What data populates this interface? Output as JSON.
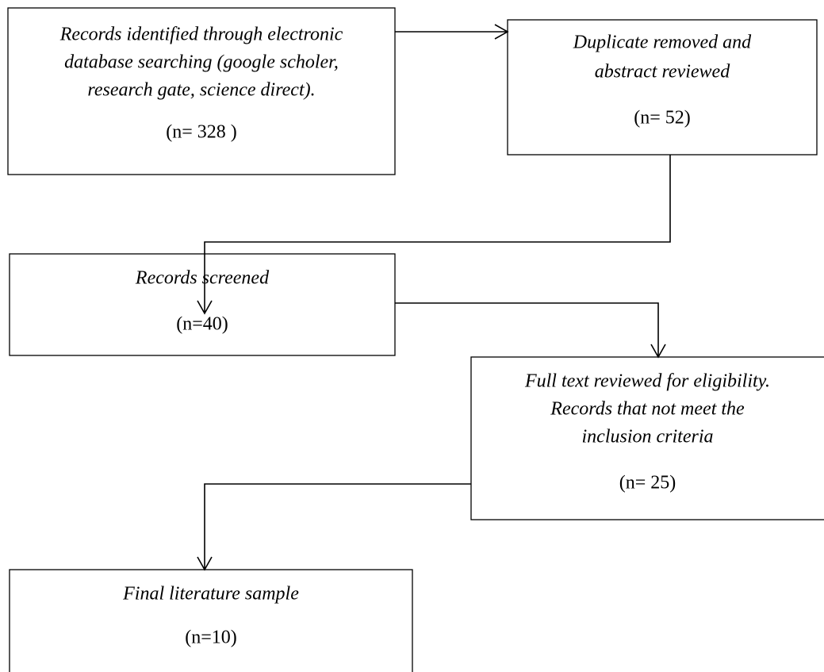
{
  "nodes": [
    {
      "label_lines": [
        "Records identified through electronic",
        "database searching (google scholer,",
        "research gate, science direct)."
      ],
      "count": "(n= 328 )"
    },
    {
      "label_lines": [
        "Duplicate removed and",
        "abstract reviewed"
      ],
      "count": "(n= 52)"
    },
    {
      "label_lines": [
        "Records screened"
      ],
      "count": "(n=40)"
    },
    {
      "label_lines": [
        "Full text reviewed for eligibility.",
        "Records that not meet the",
        "inclusion criteria"
      ],
      "count": "(n= 25)"
    },
    {
      "label_lines": [
        "Final literature sample"
      ],
      "count": "(n=10)"
    }
  ]
}
